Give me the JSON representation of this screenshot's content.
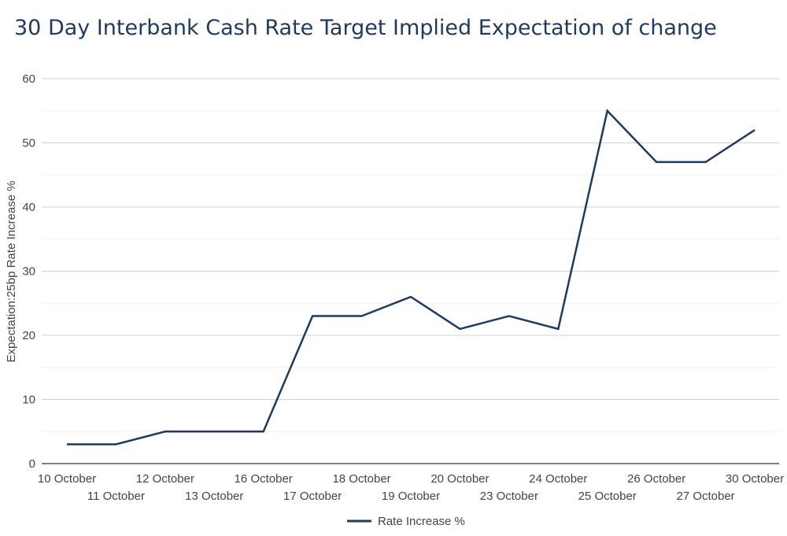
{
  "chart_data": {
    "type": "line",
    "title": "30 Day Interbank Cash Rate Target Implied Expectation of change",
    "xlabel": "",
    "ylabel": "Expectation:25bp Rate Increase %",
    "ylim": [
      0,
      60
    ],
    "yticks": [
      0,
      10,
      20,
      30,
      40,
      50,
      60
    ],
    "grid": true,
    "legend_position": "bottom",
    "categories": [
      "10 October",
      "11 October",
      "12 October",
      "13 October",
      "16 October",
      "17 October",
      "18 October",
      "19 October",
      "20 October",
      "23 October",
      "24 October",
      "25 October",
      "26 October",
      "27 October",
      "30 October"
    ],
    "series": [
      {
        "name": "Rate Increase %",
        "color": "#1f3a5f",
        "values": [
          3,
          3,
          5,
          5,
          5,
          23,
          23,
          26,
          21,
          23,
          21,
          55,
          47,
          47,
          52
        ]
      }
    ]
  }
}
